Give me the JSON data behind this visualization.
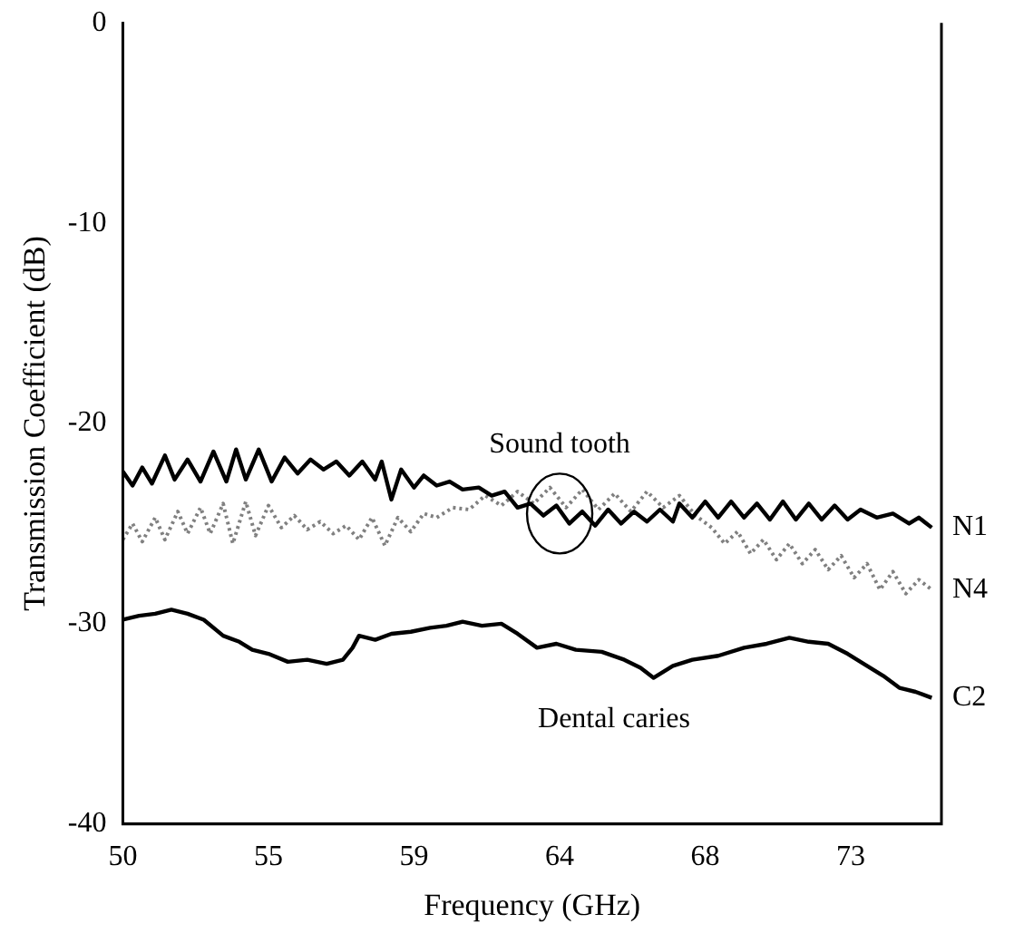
{
  "chart_data": {
    "type": "line",
    "xlabel": "Frequency (GHz)",
    "ylabel": "Transmission Coefficient (dB)",
    "xlim": [
      50,
      75.3
    ],
    "xticks": [
      50,
      {
        "value": 54.5,
        "label": "55"
      },
      59,
      {
        "value": 63.5,
        "label": "64"
      },
      68,
      {
        "value": 72.5,
        "label": "73"
      }
    ],
    "ylim": [
      -40,
      0
    ],
    "yticks": [
      -40,
      -30,
      -20,
      -10,
      0
    ],
    "grid": false,
    "legend": false,
    "marker": "none",
    "annotations": [
      {
        "text": "Sound tooth",
        "x": 63.5,
        "y": -24.5
      },
      "Dental caries"
    ],
    "series": [
      {
        "name": "N1",
        "color": "#000000",
        "line_style": "solid",
        "x": [
          50.0,
          50.3,
          50.6,
          50.9,
          51.3,
          51.6,
          52.0,
          52.4,
          52.8,
          53.2,
          53.5,
          53.8,
          54.2,
          54.6,
          55.0,
          55.4,
          55.8,
          56.2,
          56.6,
          57.0,
          57.4,
          57.8,
          58.0,
          58.3,
          58.6,
          59.0,
          59.3,
          59.7,
          60.1,
          60.5,
          61.0,
          61.4,
          61.8,
          62.2,
          62.6,
          63.0,
          63.4,
          63.8,
          64.2,
          64.6,
          65.0,
          65.4,
          65.8,
          66.2,
          66.6,
          67.0,
          67.2,
          67.6,
          68.0,
          68.4,
          68.8,
          69.2,
          69.6,
          70.0,
          70.4,
          70.8,
          71.2,
          71.6,
          72.0,
          72.4,
          72.8,
          73.3,
          73.8,
          74.3,
          74.6,
          75.0
        ],
        "values": [
          -22.4,
          -23.1,
          -22.2,
          -23.0,
          -21.6,
          -22.8,
          -21.8,
          -22.9,
          -21.4,
          -22.9,
          -21.3,
          -22.8,
          -21.3,
          -22.9,
          -21.7,
          -22.5,
          -21.8,
          -22.3,
          -21.9,
          -22.6,
          -21.9,
          -22.8,
          -21.9,
          -23.8,
          -22.3,
          -23.2,
          -22.6,
          -23.1,
          -22.9,
          -23.3,
          -23.2,
          -23.6,
          -23.4,
          -24.2,
          -24.0,
          -24.6,
          -24.1,
          -25.0,
          -24.4,
          -25.1,
          -24.3,
          -25.0,
          -24.4,
          -24.9,
          -24.3,
          -24.9,
          -24.0,
          -24.7,
          -23.9,
          -24.7,
          -23.9,
          -24.7,
          -24.0,
          -24.8,
          -23.9,
          -24.8,
          -24.0,
          -24.8,
          -24.1,
          -24.8,
          -24.3,
          -24.7,
          -24.5,
          -25.0,
          -24.7,
          -25.2
        ]
      },
      {
        "name": "N4",
        "color": "#808080",
        "line_style": "dotted",
        "x": [
          50.0,
          50.3,
          50.6,
          51.0,
          51.3,
          51.7,
          52.0,
          52.4,
          52.7,
          53.1,
          53.4,
          53.8,
          54.1,
          54.5,
          54.9,
          55.3,
          55.7,
          56.1,
          56.5,
          56.9,
          57.3,
          57.7,
          58.1,
          58.5,
          58.9,
          59.3,
          59.7,
          60.2,
          60.7,
          61.2,
          61.7,
          62.2,
          62.7,
          63.2,
          63.7,
          64.2,
          64.7,
          65.2,
          65.7,
          66.2,
          66.7,
          67.2,
          67.7,
          68.2,
          68.6,
          69.0,
          69.4,
          69.8,
          70.2,
          70.6,
          71.0,
          71.4,
          71.8,
          72.2,
          72.6,
          73.0,
          73.4,
          73.8,
          74.2,
          74.6,
          75.0
        ],
        "values": [
          -25.8,
          -25.0,
          -25.9,
          -24.7,
          -25.8,
          -24.4,
          -25.5,
          -24.2,
          -25.5,
          -24.0,
          -26.0,
          -23.9,
          -25.6,
          -24.1,
          -25.2,
          -24.6,
          -25.3,
          -24.9,
          -25.5,
          -25.1,
          -25.8,
          -24.7,
          -26.1,
          -24.7,
          -25.4,
          -24.5,
          -24.7,
          -24.2,
          -24.3,
          -23.6,
          -24.1,
          -23.4,
          -24.0,
          -23.2,
          -24.2,
          -23.3,
          -24.3,
          -23.5,
          -24.4,
          -23.4,
          -24.2,
          -23.6,
          -24.6,
          -25.2,
          -26.0,
          -25.4,
          -26.5,
          -25.8,
          -26.8,
          -26.0,
          -27.0,
          -26.3,
          -27.3,
          -26.6,
          -27.7,
          -27.0,
          -28.3,
          -27.4,
          -28.5,
          -27.8,
          -28.3
        ]
      },
      {
        "name": "C2",
        "color": "#000000",
        "line_style": "solid",
        "x": [
          50.0,
          50.5,
          51.0,
          51.5,
          52.0,
          52.5,
          53.1,
          53.6,
          54.0,
          54.5,
          55.1,
          55.7,
          56.3,
          56.8,
          57.1,
          57.3,
          57.8,
          58.3,
          58.9,
          59.5,
          60.0,
          60.5,
          61.1,
          61.7,
          62.2,
          62.8,
          63.4,
          64.0,
          64.8,
          65.5,
          66.0,
          66.4,
          67.0,
          67.6,
          68.4,
          69.2,
          69.9,
          70.6,
          71.2,
          71.8,
          72.4,
          73.0,
          73.5,
          74.0,
          74.5,
          75.0
        ],
        "values": [
          -29.8,
          -29.6,
          -29.5,
          -29.3,
          -29.5,
          -29.8,
          -30.6,
          -30.9,
          -31.3,
          -31.5,
          -31.9,
          -31.8,
          -32.0,
          -31.8,
          -31.2,
          -30.6,
          -30.8,
          -30.5,
          -30.4,
          -30.2,
          -30.1,
          -29.9,
          -30.1,
          -30.0,
          -30.5,
          -31.2,
          -31.0,
          -31.3,
          -31.4,
          -31.8,
          -32.2,
          -32.7,
          -32.1,
          -31.8,
          -31.6,
          -31.2,
          -31.0,
          -30.7,
          -30.9,
          -31.0,
          -31.5,
          -32.1,
          -32.6,
          -33.2,
          -33.4,
          -33.7
        ]
      }
    ]
  }
}
